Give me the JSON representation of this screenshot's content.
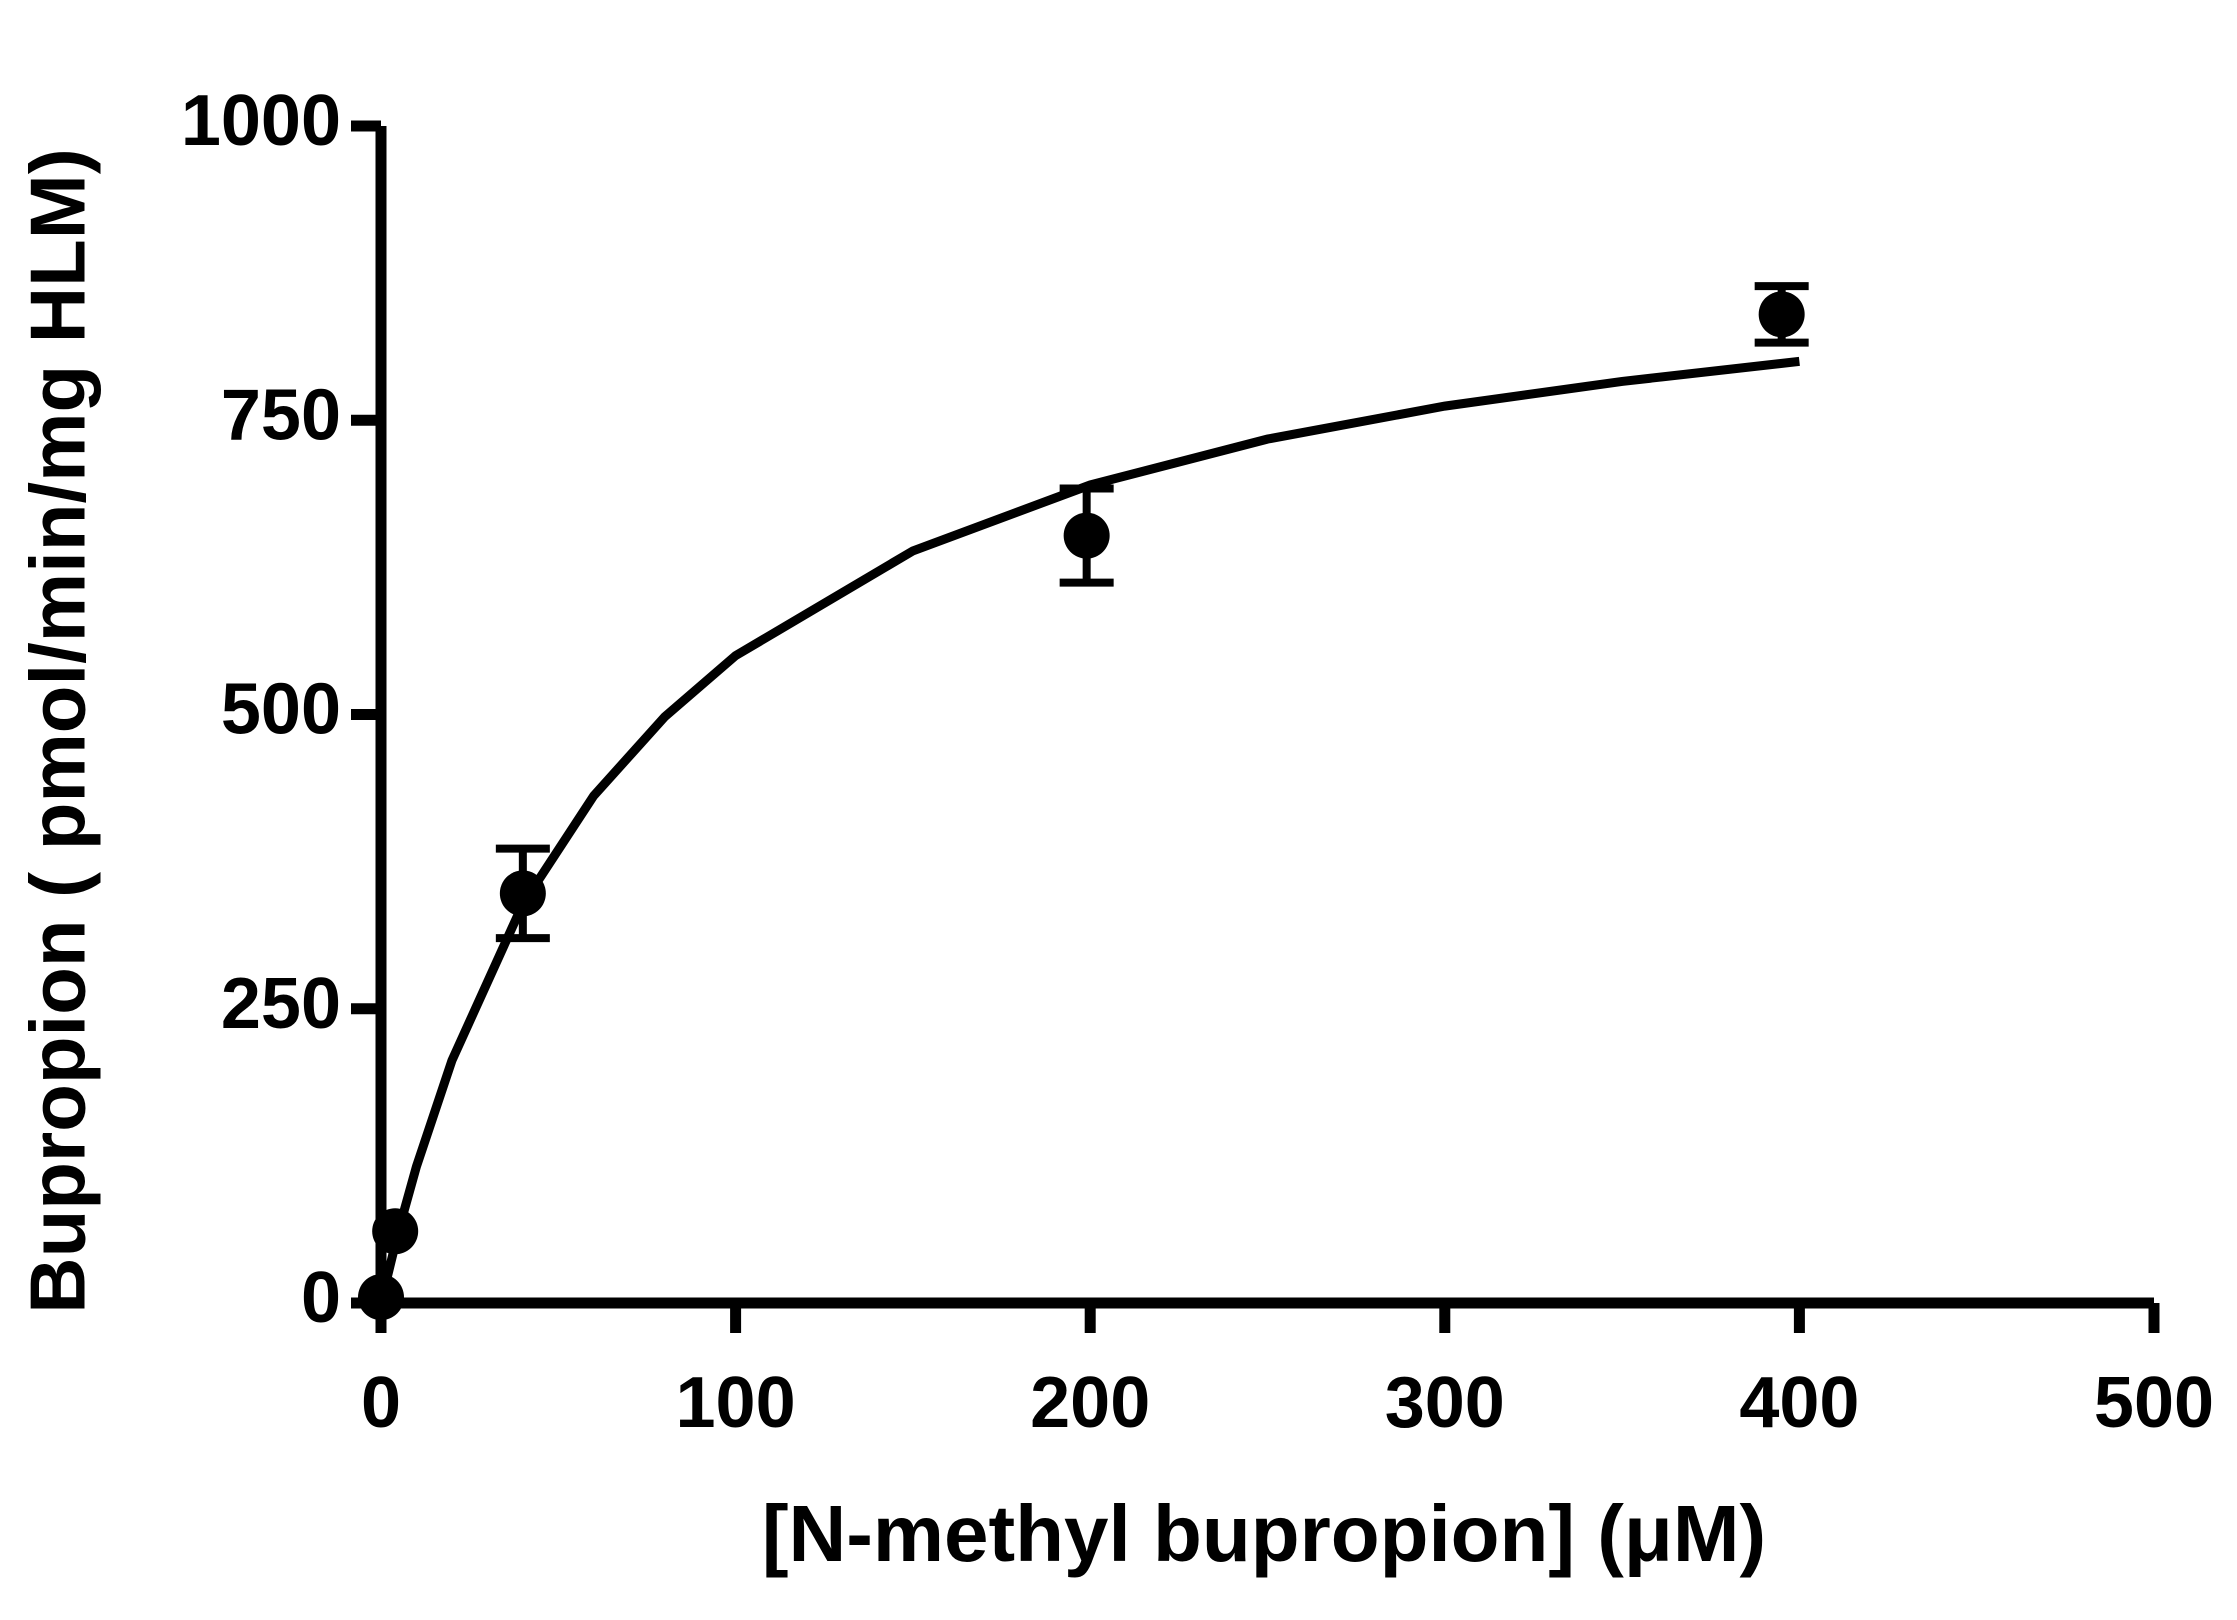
{
  "chart_data": {
    "type": "scatter",
    "x_label": "[N-methyl bupropion] (μM)",
    "y_label": "Bupropion ( pmol/min/mg HLM)",
    "xlim": [
      0,
      500
    ],
    "xticks": [
      0,
      100,
      200,
      300,
      400,
      500
    ],
    "ylim": [
      0,
      1000
    ],
    "yticks": [
      0,
      250,
      500,
      750,
      1000
    ],
    "color": "#000000",
    "series": [
      {
        "x": [
          0,
          4,
          40,
          199,
          395
        ],
        "values": [
          5,
          61,
          348,
          652,
          840
        ],
        "errors": [
          0,
          0,
          38,
          40,
          24
        ]
      }
    ],
    "fit": {
      "x": [
        0,
        5,
        10,
        20,
        40,
        60,
        80,
        100,
        150,
        200,
        250,
        300,
        350,
        400
      ],
      "values": [
        0,
        62,
        116,
        206,
        339,
        431,
        498,
        550,
        639,
        695,
        734,
        762,
        783,
        800
      ]
    }
  }
}
